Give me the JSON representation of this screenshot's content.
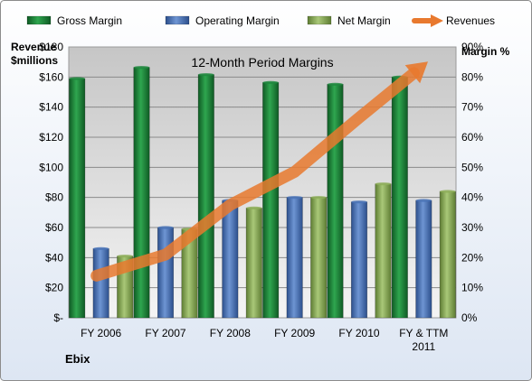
{
  "chart_data": {
    "type": "bar",
    "title": "12-Month Period Margins",
    "footer_label": "Ebix",
    "y_left_label_line1": "Revenue",
    "y_left_label_line2": "$millions",
    "y_right_label": "Margin %",
    "categories": [
      "FY 2006",
      "FY 2007",
      "FY 2008",
      "FY 2009",
      "FY 2010",
      "FY & TTM 2011"
    ],
    "left_axis": {
      "min": 0,
      "max": 180,
      "step": 20,
      "tick_labels": [
        "$-",
        "$20",
        "$40",
        "$60",
        "$80",
        "$100",
        "$120",
        "$140",
        "$160",
        "$180"
      ]
    },
    "right_axis": {
      "min": 0,
      "max": 90,
      "step": 10,
      "tick_labels": [
        "0%",
        "10%",
        "20%",
        "30%",
        "40%",
        "50%",
        "60%",
        "70%",
        "80%",
        "90%"
      ]
    },
    "series": [
      {
        "name": "Gross Margin",
        "axis": "right",
        "kind": "bar",
        "color": "#1E8A3E",
        "values": [
          79.5,
          83.2,
          80.8,
          78.2,
          77.6,
          80.0
        ]
      },
      {
        "name": "Operating Margin",
        "axis": "right",
        "kind": "bar",
        "color": "#4A74B8",
        "values": [
          23.0,
          30.0,
          39.0,
          40.0,
          38.5,
          39.0
        ]
      },
      {
        "name": "Net Margin",
        "axis": "right",
        "kind": "bar",
        "color": "#8FB05A",
        "values": [
          20.5,
          29.5,
          36.5,
          40.0,
          44.5,
          42.0
        ]
      },
      {
        "name": "Revenues",
        "axis": "left",
        "kind": "line",
        "color": "#E8792E",
        "values": [
          28,
          42,
          75,
          97,
          133,
          168
        ]
      }
    ],
    "grid": true,
    "legend": "top"
  }
}
